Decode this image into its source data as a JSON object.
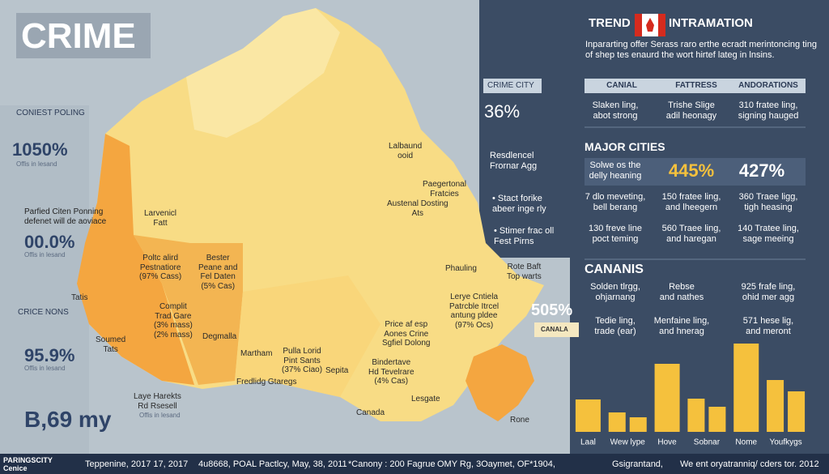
{
  "header": {
    "title": "CRIME"
  },
  "left_stats": [
    {
      "label": "CONIEST POLING",
      "value": "1050%",
      "note": "Offis in lesand"
    },
    {
      "label": "Parfied Citen Ponning\ndefenet will de aoviace",
      "value": "00.0%",
      "note": "Offis in lesand"
    },
    {
      "label": "CRICE NONS",
      "value": "95.9%",
      "note": "Offis in lesand"
    },
    {
      "label": "Laye Harekts\nRd Rsesell",
      "value": "B,69 my",
      "note": "Offis in lesand"
    }
  ],
  "map_labels": [
    "Larvenicl\nFatt",
    "Poltc alird\nPestnatiore\n(97% Cass)",
    "Bester\nPeane and\nFel Daten\n(5% Cas)",
    "Complit\nTrad Gare\n(3% mass)\n(2% mass)",
    "Degmalla",
    "Soumed\nTats",
    "Tatis",
    "Martham",
    "Pulla Lorid\nPint Sants\n(37% Ciao)",
    "Fredlidg Gtaregs",
    "Sepita",
    "Bindertave\nHd Tevelrare\n(4% Cas)",
    "Price af esp\nAones Crine\nSgfiel Dolong",
    "Lerye Cntiela\nPatrcble Itrcel\nantung pldee\n(97% Ocs)",
    "Lalbaund\nooid",
    "Paegertonal\nFratcies",
    "Austenal Dosting\nAts",
    "Phauling",
    "Canada",
    "Lesgate",
    "Rone",
    "Rote Baft\nTop warts"
  ],
  "callout": {
    "value": "505%",
    "tag": "CANALA"
  },
  "side": {
    "box": "CRIME CITY",
    "value": "36%",
    "notes": [
      "Resdlencel\nFrornar Agg",
      "• Stact forike\nabeer inge rly",
      "• Stimer frac oll\nFest Pirns"
    ]
  },
  "panel": {
    "title_left": "TREND",
    "title_right": "INTRAMATION",
    "subtitle": "Inpararting offer Serass raro erthe ecradt merintoncing ting\nof shep tes enaurd the wort hirtef lateg in lnsins.",
    "table1": {
      "header": [
        "CANIAL",
        "FATTRESS",
        "ANDORATIONS"
      ],
      "rows": [
        [
          "Slaken ling,\nabot strong",
          "Trishe Slige\nadil heonagy",
          "310 fratee ling,\nsigning hauged"
        ]
      ]
    },
    "major_cities": "MAJOR CITIES",
    "table2": {
      "highlight": [
        "Solwe os the\ndelly heaning",
        "445%",
        "427%"
      ],
      "rows": [
        [
          "7 dlo meveting,\nbell berang",
          "150 fratee ling,\nand lheegern",
          "360 Traee ligg,\ntigh heasing"
        ],
        [
          "130 freve line\npoct teming",
          "560 Traee ling,\nand haregan",
          "140 Tratee ling,\nsage meeing"
        ]
      ]
    },
    "canals": "CANANIS",
    "table3": {
      "rows": [
        [
          "Solden tlrgg,\nohjarnang",
          "Rebse\nand nathes",
          "925 frafe ling,\nohid mer agg"
        ],
        [
          "Tedie ling,\ntrade (ear)",
          "Menfaine ling,\nand hnerag",
          "571 hese lig,\nand meront"
        ]
      ]
    }
  },
  "chart_data": {
    "type": "bar",
    "categories": [
      "Laal",
      "Wew lype",
      "Hove",
      "Sobnar",
      "Nome",
      "Youfkygs"
    ],
    "series": [
      {
        "color": "#f5c13d",
        "values": [
          40,
          24,
          84,
          41,
          109,
          64
        ]
      },
      {
        "color": "#f5c13d",
        "values": [
          null,
          18,
          null,
          31,
          null,
          50
        ]
      }
    ],
    "ylim": [
      0,
      120
    ]
  },
  "footer": [
    "PARINGSCITY\nCenice",
    "Teppenine, 2017 17, 2017",
    "4u8668, POAL Pactlcy, May, 38, 2011",
    "*Canony : 200 Fagrue",
    "OMY Rg, 3Oaymet, OF*1904,",
    "Gsigrantand,",
    "We ent oryatranniq/ cders tor. 2012"
  ]
}
